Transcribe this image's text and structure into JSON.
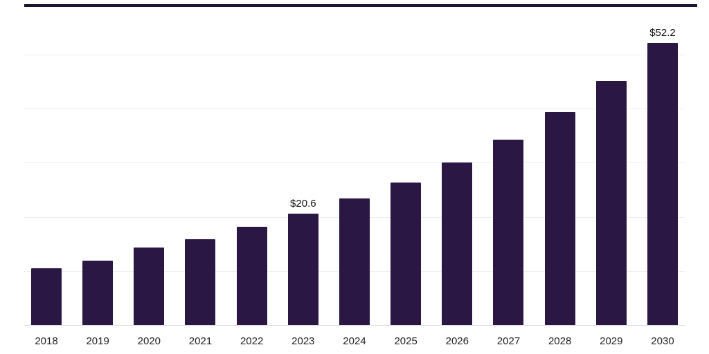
{
  "chart_data": {
    "type": "bar",
    "title": "",
    "xlabel": "",
    "ylabel": "",
    "legend": "none",
    "grid": "horizontal",
    "categories": [
      "2018",
      "2019",
      "2020",
      "2021",
      "2022",
      "2023",
      "2024",
      "2025",
      "2026",
      "2027",
      "2028",
      "2029",
      "2030"
    ],
    "values": [
      10.5,
      11.9,
      14.3,
      15.9,
      18.2,
      20.6,
      23.4,
      26.4,
      30.0,
      34.3,
      39.4,
      45.2,
      52.2
    ],
    "data_labels": {
      "2023": "$20.6",
      "2030": "$52.2"
    },
    "bar_color": "#2b1744",
    "gridline_color": "#eeeeee",
    "axis_line_color": "#d8d8d8",
    "gridline_values": [
      10,
      20,
      30,
      40,
      50
    ],
    "ylim": [
      0,
      58
    ]
  }
}
